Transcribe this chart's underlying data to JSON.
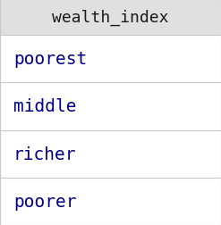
{
  "title": "wealth_index",
  "values": [
    "poorest",
    "middle",
    "richer",
    "poorer"
  ],
  "header_bg": "#e0e0e0",
  "row_bg": "#ffffff",
  "header_text_color": "#1a1a1a",
  "value_text_color": "#00008b",
  "line_color": "#c8c8c8",
  "header_fontsize": 13,
  "value_fontsize": 14,
  "font_family": "monospace",
  "fig_bg": "#ffffff",
  "fig_width": 2.47,
  "fig_height": 2.53,
  "dpi": 100
}
